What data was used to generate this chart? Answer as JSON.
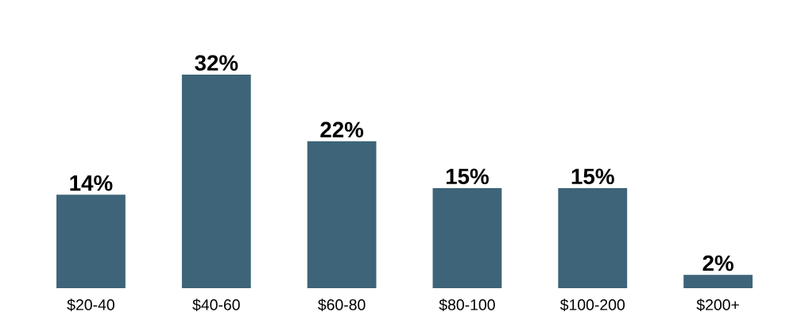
{
  "chart_data": {
    "type": "bar",
    "categories": [
      "$20-40",
      "$40-60",
      "$60-80",
      "$80-100",
      "$100-200",
      "$200+"
    ],
    "values": [
      14,
      32,
      22,
      15,
      15,
      2
    ],
    "value_labels": [
      "14%",
      "32%",
      "22%",
      "15%",
      "15%",
      "2%"
    ],
    "color": "#3d6478"
  }
}
